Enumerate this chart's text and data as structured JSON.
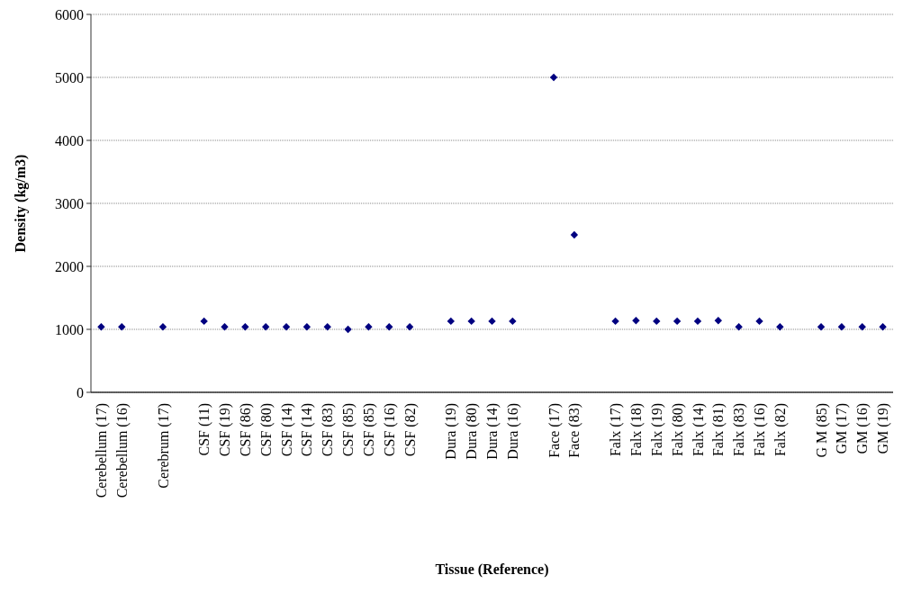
{
  "chart_data": {
    "type": "scatter",
    "xlabel": "Tissue (Reference)",
    "ylabel": "Density (kg/m3)",
    "categories": [
      "Cerebellum (17)",
      "Cerebellum (16)",
      null,
      "Cerebrum (17)",
      null,
      "CSF (11)",
      "CSF (19)",
      "CSF (86)",
      "CSF (80)",
      "CSF (14)",
      "CSF (14)",
      "CSF (83)",
      "CSF (85)",
      "CSF (85)",
      "CSF (16)",
      "CSF (82)",
      null,
      "Dura (19)",
      "Dura (80)",
      "Dura (14)",
      "Dura (16)",
      null,
      "Face (17)",
      "Face (83)",
      null,
      "Falx (17)",
      "Falx (18)",
      "Falx (19)",
      "Falx (80)",
      "Falx (14)",
      "Falx (81)",
      "Falx (83)",
      "Falx (16)",
      "Falx (82)",
      null,
      "G M (85)",
      "GM (17)",
      "GM (16)",
      "GM (19)"
    ],
    "values": [
      1040,
      1040,
      null,
      1040,
      null,
      1130,
      1040,
      1040,
      1040,
      1040,
      1040,
      1040,
      1000,
      1040,
      1040,
      1040,
      null,
      1130,
      1130,
      1130,
      1130,
      null,
      5000,
      2500,
      null,
      1130,
      1140,
      1130,
      1130,
      1130,
      1140,
      1040,
      1130,
      1040,
      null,
      1040,
      1040,
      1040,
      1040
    ],
    "color": "#000080",
    "marker": "diamond",
    "ylim": [
      0,
      6000
    ],
    "yticks": [
      0,
      1000,
      2000,
      3000,
      4000,
      5000,
      6000
    ],
    "grid": "y"
  }
}
